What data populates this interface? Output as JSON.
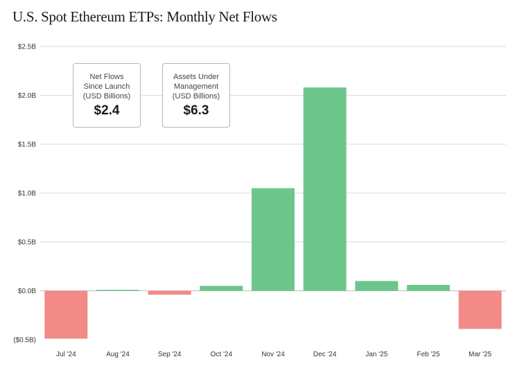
{
  "title": "U.S. Spot Ethereum ETPs: Monthly Net Flows",
  "info_boxes": [
    {
      "label_lines": [
        "Net Flows",
        "Since Launch",
        "(USD Billions)"
      ],
      "value": "$2.4"
    },
    {
      "label_lines": [
        "Assets Under",
        "Management",
        "(USD Billions)"
      ],
      "value": "$6.3"
    }
  ],
  "colors": {
    "positive": "#6cc68c",
    "negative": "#f28b88",
    "grid": "#d9d9d9"
  },
  "chart_data": {
    "type": "bar",
    "title": "U.S. Spot Ethereum ETPs: Monthly Net Flows",
    "xlabel": "",
    "ylabel": "",
    "categories": [
      "Jul '24",
      "Aug '24",
      "Sep '24",
      "Oct '24",
      "Nov '24",
      "Dec '24",
      "Jan '25",
      "Feb '25",
      "Mar '25"
    ],
    "values": [
      -0.49,
      0.01,
      -0.04,
      0.05,
      1.05,
      2.08,
      0.1,
      0.06,
      -0.39
    ],
    "unit": "USD billions",
    "ylim": [
      -0.5,
      2.5
    ],
    "yticks": [
      2.5,
      2.0,
      1.5,
      1.0,
      0.5,
      0.0,
      -0.5
    ],
    "ytick_labels": [
      "$2.5B",
      "$2.0B",
      "$1.5B",
      "$1.0B",
      "$0.5B",
      "$0.0B",
      "($0.5B)"
    ],
    "grid": true
  }
}
